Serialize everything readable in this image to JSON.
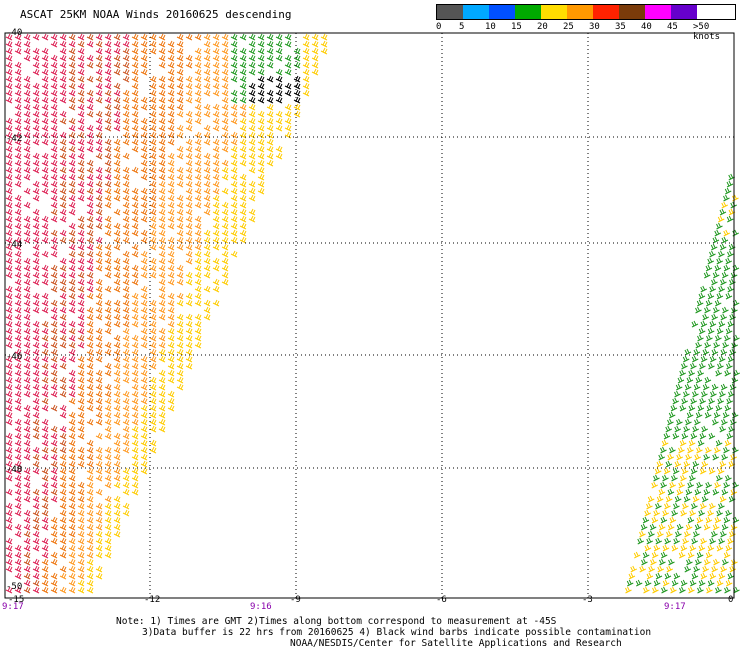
{
  "title": "ASCAT 25KM NOAA Winds 20160625 descending",
  "legend": {
    "units": "knots",
    "colors": [
      "#555555",
      "#00a8ff",
      "#0050ff",
      "#00aa00",
      "#ffdd00",
      "#ff9900",
      "#ff2200",
      "#7a3b0a",
      "#ff00ff",
      "#6600cc"
    ],
    "labels": [
      "0",
      "5",
      "10",
      "15",
      "20",
      "25",
      "30",
      "35",
      "40",
      "45",
      ">50 knots"
    ]
  },
  "map": {
    "lat_labels": [
      "-40",
      "-42",
      "-44",
      "-46",
      "-48",
      "-50"
    ],
    "lon_labels": [
      "-15",
      "-12",
      "-9",
      "-6",
      "-3",
      "0"
    ],
    "time_labels": [
      {
        "text": "9:17",
        "lon": "-15"
      },
      {
        "text": "9:16",
        "lon": "-9"
      },
      {
        "text": "9:17",
        "lon": "0"
      }
    ],
    "swath_colors": [
      "#dd2255",
      "#cc5522",
      "#ee7711",
      "#ff9922",
      "#ffcc00",
      "#229922",
      "#000000"
    ]
  },
  "notes": {
    "line1": "Note: 1) Times are GMT 2)Times along bottom correspond to measurement at -45S",
    "line2": "3)Data buffer is 22 hrs from 20160625 4) Black wind barbs indicate possible contamination",
    "line3": "NOAA/NESDIS/Center for Satellite Applications and Research"
  }
}
